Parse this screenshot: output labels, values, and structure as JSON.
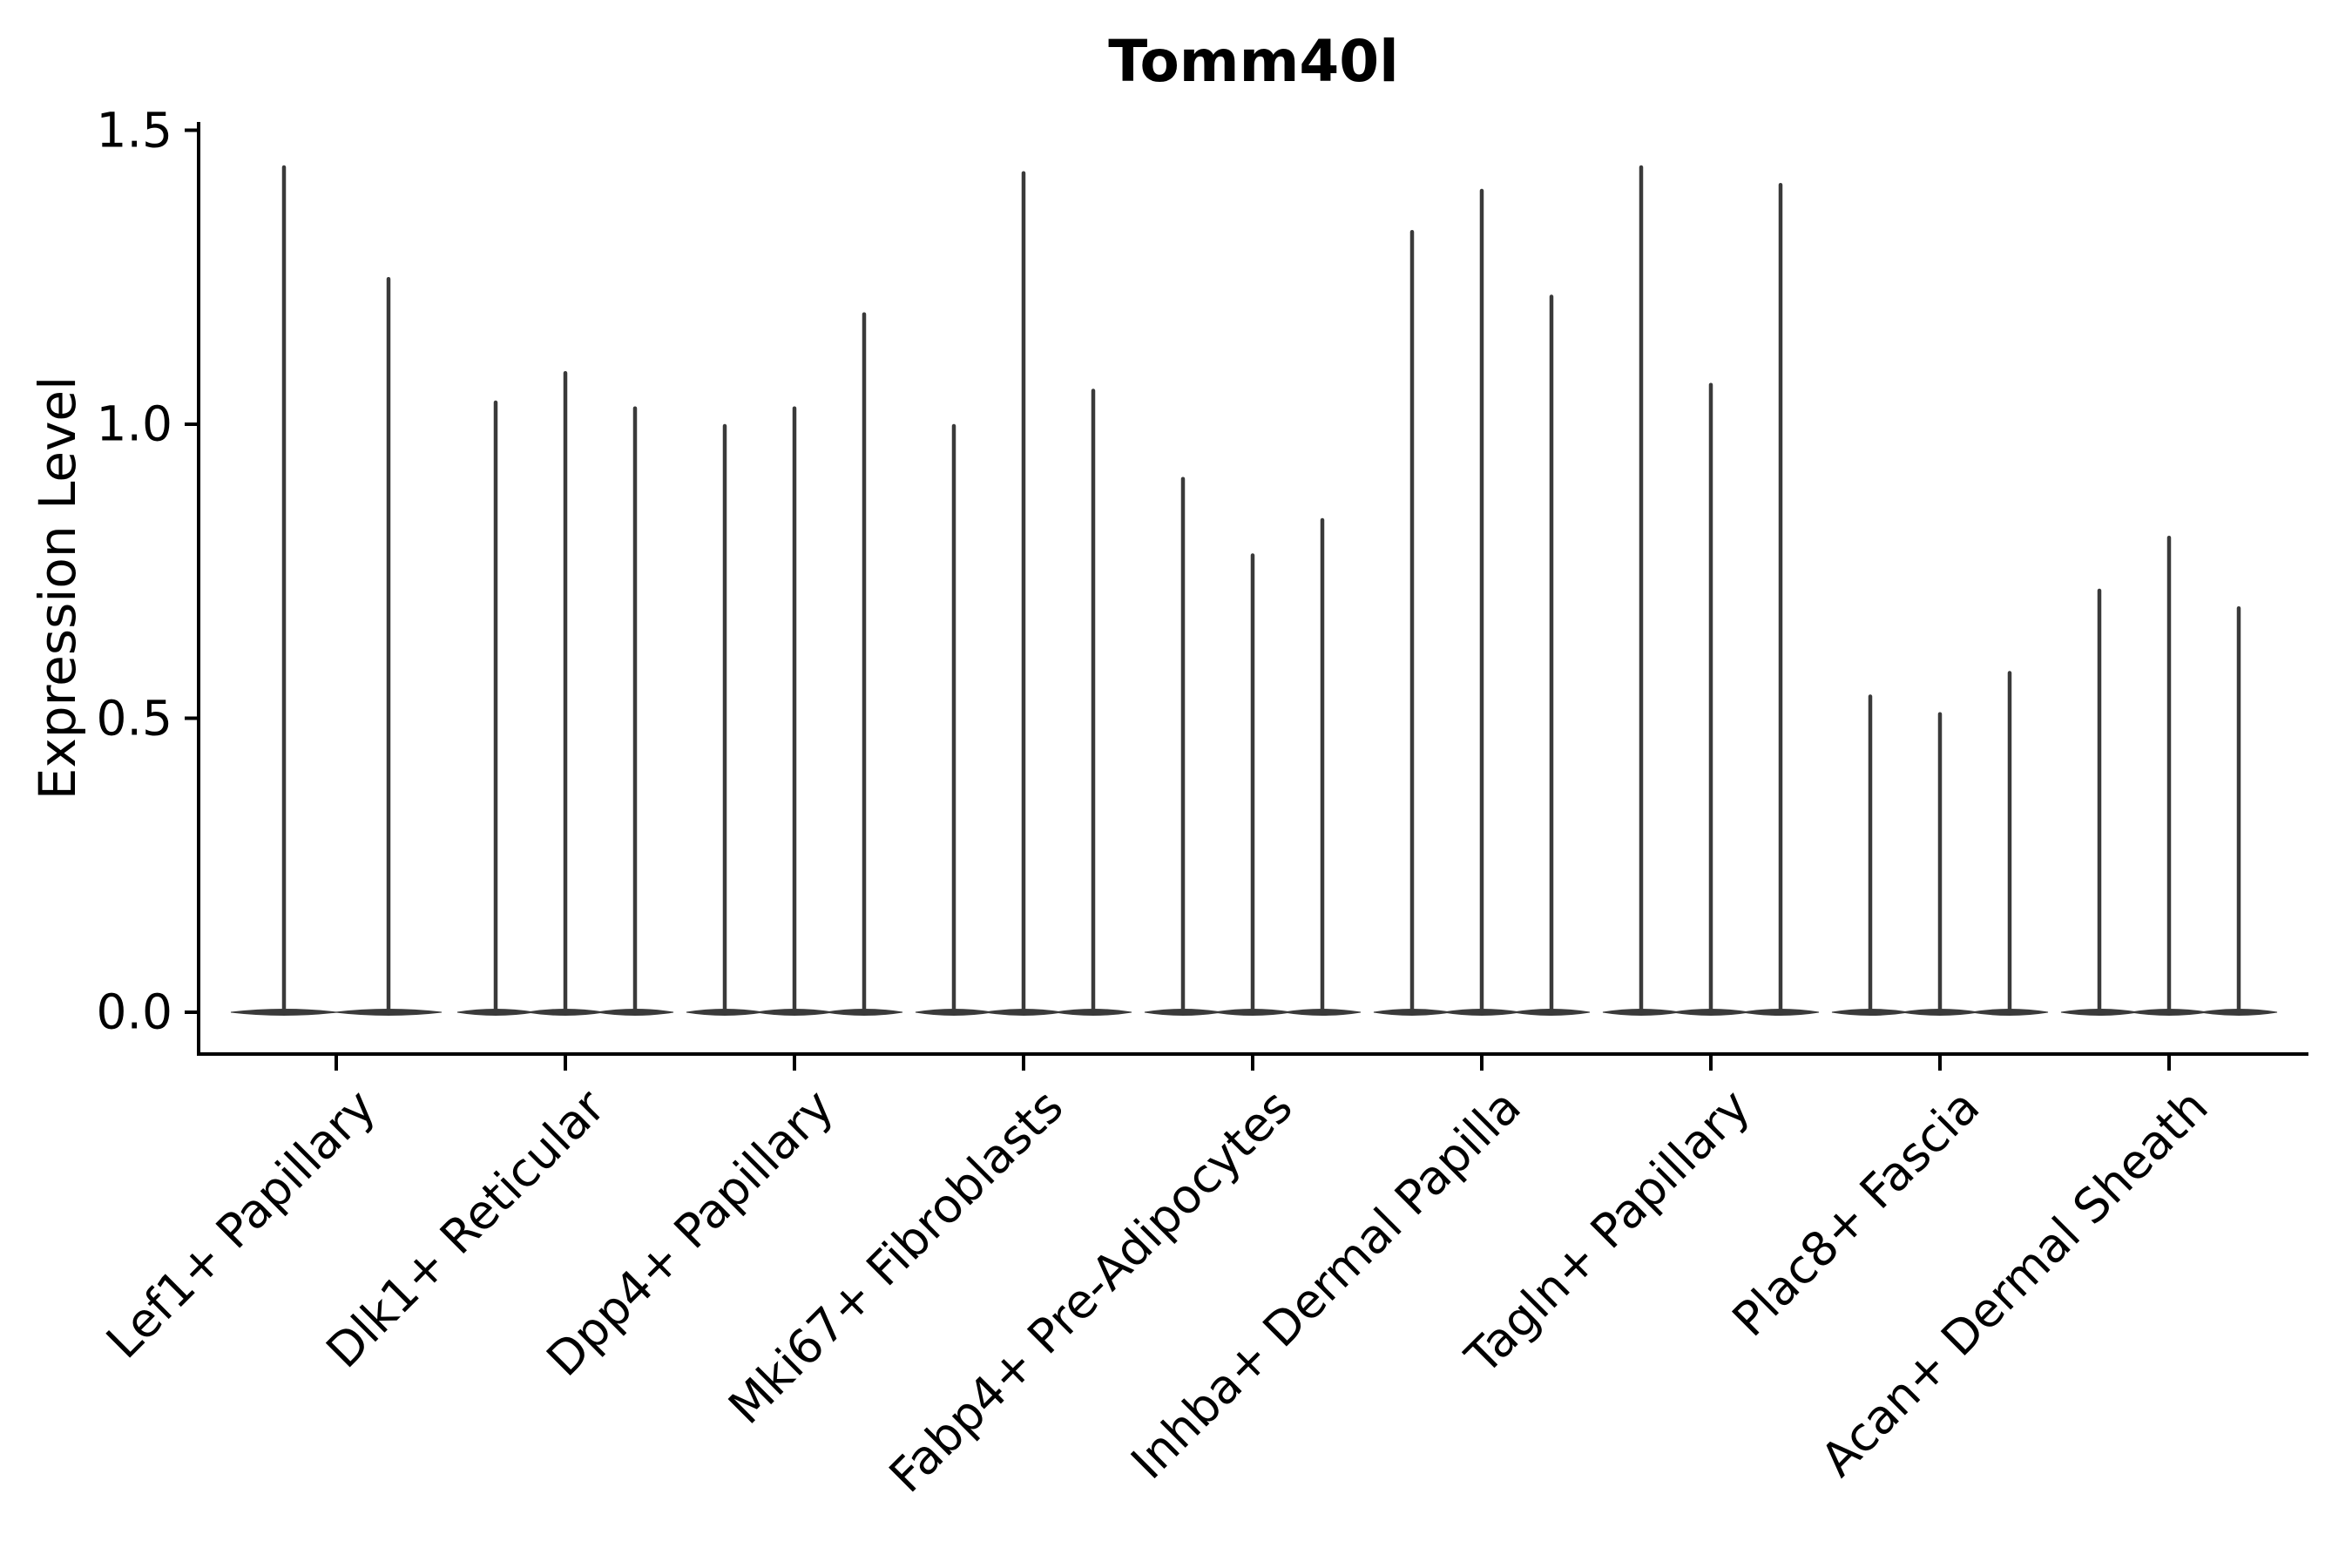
{
  "title": "Tomm40l",
  "axes": {
    "ylabel": "Expression Level",
    "ytick_labels": [
      "0.0",
      "0.5",
      "1.0",
      "1.5"
    ]
  },
  "chart_data": {
    "type": "violin",
    "title": "Tomm40l",
    "xlabel": "",
    "ylabel": "Expression Level",
    "yticks": [
      0.0,
      0.5,
      1.0,
      1.5
    ],
    "ylim": [
      -0.07,
      1.51
    ],
    "grid": false,
    "legend": "none",
    "style": "narrow spike violins; bulk of density collapsed at 0 with a thin vertical spike up to the max expression per violin",
    "violin_color": "#3a3a3a",
    "categories": [
      "Lef1+ Papillary",
      "Dlk1+ Reticular",
      "Dpp4+ Papillary",
      "Mki67+ Fibroblasts",
      "Fabp4+ Pre-Adipocytes",
      "Inhba+ Dermal Papilla",
      "Tagln+ Papillary",
      "Plac8+ Fascia",
      "Acan+ Dermal Sheath"
    ],
    "groups": [
      {
        "label": "Lef1+ Papillary",
        "violin_max_values": [
          1.44,
          1.25
        ]
      },
      {
        "label": "Dlk1+ Reticular",
        "violin_max_values": [
          1.04,
          1.09,
          1.03
        ]
      },
      {
        "label": "Dpp4+ Papillary",
        "violin_max_values": [
          1.0,
          1.03,
          1.19
        ]
      },
      {
        "label": "Mki67+ Fibroblasts",
        "violin_max_values": [
          1.0,
          1.43,
          1.06
        ]
      },
      {
        "label": "Fabp4+ Pre-Adipocytes",
        "violin_max_values": [
          0.91,
          0.78,
          0.84
        ]
      },
      {
        "label": "Inhba+ Dermal Papilla",
        "violin_max_values": [
          1.33,
          1.4,
          1.22
        ]
      },
      {
        "label": "Tagln+ Papillary",
        "violin_max_values": [
          1.44,
          1.07,
          1.41
        ]
      },
      {
        "label": "Plac8+ Fascia",
        "violin_max_values": [
          0.54,
          0.51,
          0.58
        ]
      },
      {
        "label": "Acan+ Dermal Sheath",
        "violin_max_values": [
          0.72,
          0.81,
          0.69
        ]
      }
    ]
  }
}
